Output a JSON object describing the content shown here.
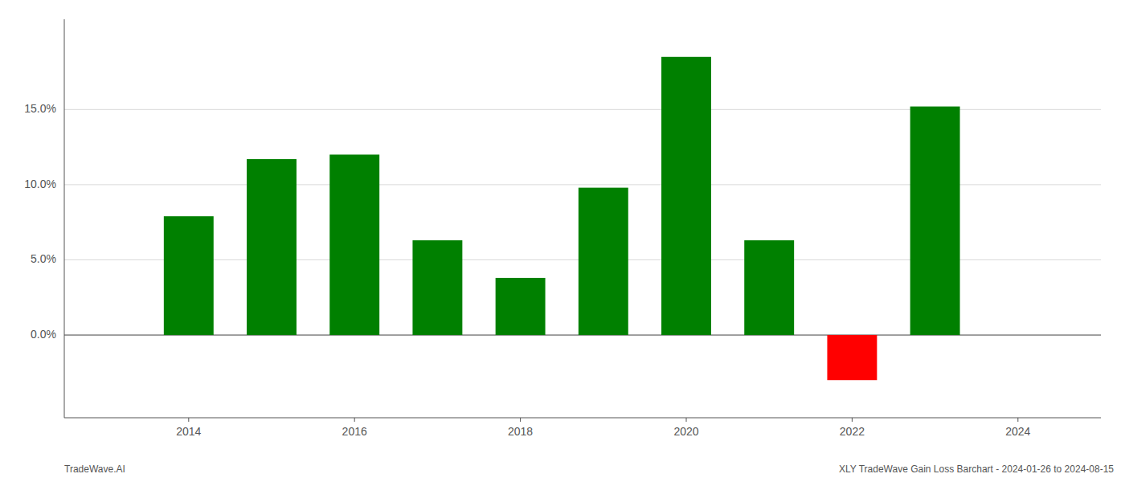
{
  "chart_data": {
    "type": "bar",
    "x": [
      2014,
      2015,
      2016,
      2017,
      2018,
      2019,
      2020,
      2021,
      2022,
      2023
    ],
    "values": [
      7.9,
      11.7,
      12.0,
      6.3,
      3.8,
      9.8,
      18.5,
      6.3,
      -3.0,
      15.2
    ],
    "colors": [
      "#008000",
      "#008000",
      "#008000",
      "#008000",
      "#008000",
      "#008000",
      "#008000",
      "#008000",
      "#ff0000",
      "#008000"
    ],
    "xlim": [
      2012.5,
      2025.0
    ],
    "xticks": [
      2014,
      2016,
      2018,
      2020,
      2022,
      2024
    ],
    "ylim": [
      -5.5,
      21.0
    ],
    "yticks": [
      {
        "value": 0.0,
        "label": "0.0%"
      },
      {
        "value": 5.0,
        "label": "5.0%"
      },
      {
        "value": 10.0,
        "label": "10.0%"
      },
      {
        "value": 15.0,
        "label": "15.0%"
      }
    ],
    "grid": true,
    "annotations": [
      "TradeWave.AI",
      "XLY TradeWave Gain Loss Barchart - 2024-01-26 to 2024-08-15"
    ]
  }
}
